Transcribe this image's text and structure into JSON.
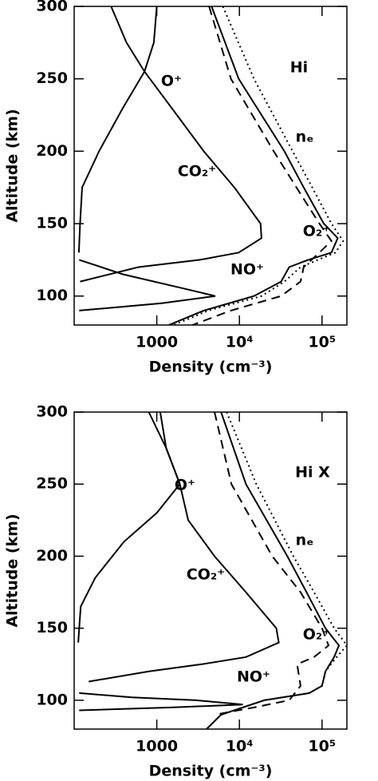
{
  "chart_data": [
    {
      "type": "line",
      "title": "Hi",
      "xlabel": "Density (cm⁻³)",
      "ylabel": "Altitude (km)",
      "xscale": "log",
      "xlim": [
        100,
        200000
      ],
      "ylim": [
        80,
        300
      ],
      "xticks": [
        1000,
        {
          "value": 10000,
          "label": "10⁴"
        },
        {
          "value": 100000,
          "label": "10⁵"
        }
      ],
      "yticks": [
        100,
        150,
        200,
        250,
        300
      ],
      "series": [
        {
          "name": "O⁺",
          "color": "#000",
          "style": "solid",
          "x": [
            1000,
            920,
            710,
            390,
            200,
            125,
            118,
            114
          ],
          "y": [
            300,
            275,
            255,
            230,
            200,
            175,
            150,
            130
          ]
        },
        {
          "name": "CO₂⁺",
          "color": "#000",
          "style": "solid",
          "x": [
            280,
            430,
            710,
            1750,
            3700,
            8700,
            18000,
            18500,
            9800,
            3300,
            600,
            118
          ],
          "y": [
            300,
            275,
            255,
            225,
            200,
            175,
            150,
            140,
            130,
            125,
            120,
            110
          ]
        },
        {
          "name": "NO⁺",
          "color": "#000",
          "style": "solid",
          "x": [
            115,
            390,
            2200,
            5100,
            1140,
            115
          ],
          "y": [
            125,
            115,
            105,
            100,
            95,
            90
          ]
        },
        {
          "name": "O₂⁺",
          "color": "#000",
          "style": "solid",
          "x": [
            4600,
            9800,
            35000,
            60000,
            105000,
            155000,
            130000,
            68000,
            40000,
            32000,
            15000,
            3700,
            1400
          ],
          "y": [
            300,
            250,
            200,
            175,
            150,
            140,
            130,
            125,
            120,
            110,
            100,
            90,
            80
          ]
        },
        {
          "name": "nₑ",
          "color": "#000",
          "style": "dotted",
          "x": [
            6300,
            15000,
            44000,
            76000,
            130000,
            180000,
            145000,
            55000,
            35000,
            18600,
            4200,
            1600
          ],
          "y": [
            300,
            250,
            200,
            175,
            150,
            138,
            130,
            120,
            110,
            100,
            90,
            80
          ]
        },
        {
          "color": "#000",
          "style": "dashed",
          "x": [
            4300,
            7900,
            26000,
            49000,
            93000,
            130000,
            93000,
            60000,
            55000,
            32000,
            7900,
            2700
          ],
          "y": [
            300,
            250,
            200,
            175,
            150,
            138,
            130,
            120,
            110,
            100,
            90,
            80
          ]
        }
      ]
    },
    {
      "type": "line",
      "title": "Hi X",
      "xlabel": "Density (cm⁻³)",
      "ylabel": "Altitude (km)",
      "xscale": "log",
      "xlim": [
        100,
        200000
      ],
      "ylim": [
        80,
        300
      ],
      "xticks": [
        1000,
        {
          "value": 10000,
          "label": "10⁴"
        },
        {
          "value": 100000,
          "label": "10⁵"
        }
      ],
      "yticks": [
        100,
        150,
        200,
        250,
        300
      ],
      "series": [
        {
          "name": "O⁺",
          "color": "#000",
          "style": "solid",
          "x": [
            1100,
            1300,
            1900,
            1000,
            400,
            180,
            120,
            112
          ],
          "y": [
            300,
            275,
            250,
            230,
            210,
            185,
            165,
            140
          ]
        },
        {
          "name": "CO₂⁺",
          "color": "#000",
          "style": "solid",
          "x": [
            800,
            1300,
            1900,
            2400,
            5000,
            12000,
            28000,
            30000,
            12000,
            3500,
            800,
            150
          ],
          "y": [
            300,
            275,
            250,
            225,
            200,
            175,
            150,
            140,
            130,
            125,
            120,
            113
          ]
        },
        {
          "name": "NO⁺",
          "color": "#000",
          "style": "solid",
          "x": [
            115,
            500,
            3000,
            11000,
            1500,
            115
          ],
          "y": [
            105,
            102,
            100,
            97,
            95,
            93
          ]
        },
        {
          "name": "O₂⁺",
          "color": "#000",
          "style": "solid",
          "x": [
            6000,
            12000,
            38000,
            65000,
            110000,
            160000,
            140000,
            110000,
            100000,
            70000,
            20000,
            6000,
            4000
          ],
          "y": [
            300,
            250,
            200,
            175,
            150,
            138,
            130,
            120,
            110,
            105,
            100,
            90,
            80
          ]
        },
        {
          "name": "nₑ",
          "color": "#000",
          "style": "dotted",
          "x": [
            7000,
            16000,
            45000,
            80000,
            140000,
            200000,
            150000,
            110000,
            100000,
            70000,
            20000,
            6000,
            4000
          ],
          "y": [
            300,
            250,
            200,
            175,
            150,
            138,
            130,
            120,
            110,
            105,
            100,
            90,
            80
          ]
        },
        {
          "color": "#000",
          "style": "dashed",
          "x": [
            5000,
            8000,
            25000,
            55000,
            100000,
            120000,
            80000,
            50000,
            55000,
            40000,
            15000,
            5000
          ],
          "y": [
            300,
            250,
            200,
            175,
            150,
            138,
            130,
            125,
            110,
            100,
            95,
            90
          ]
        }
      ]
    }
  ]
}
